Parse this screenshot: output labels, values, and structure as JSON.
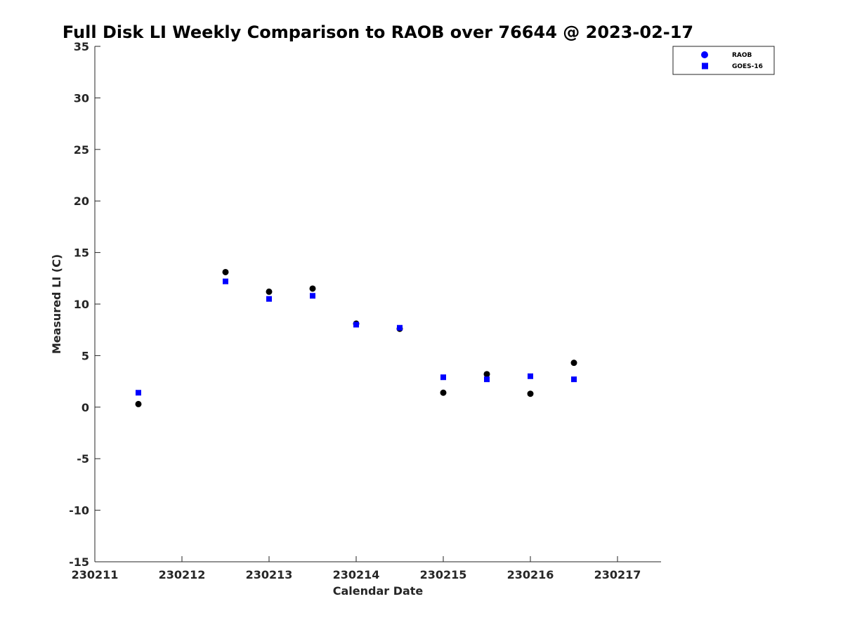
{
  "chart_data": {
    "type": "scatter",
    "title": "Full Disk LI Weekly Comparison to RAOB over 76644 @ 2023-02-17",
    "xlabel": "Calendar Date",
    "ylabel": "Measured LI (C)",
    "xlim": [
      "230211",
      "230217.5"
    ],
    "ylim": [
      -15,
      35
    ],
    "x_ticks": [
      "230211",
      "230212",
      "230213",
      "230214",
      "230215",
      "230216",
      "230217"
    ],
    "y_ticks": [
      "35",
      "30",
      "25",
      "20",
      "15",
      "10",
      "5",
      "0",
      "-5",
      "-10",
      "-15"
    ],
    "grid": false,
    "legend_position": "top-right",
    "series": [
      {
        "name": "RAOB",
        "marker": "circle",
        "color": "#000000",
        "legend_color": "#0000ff",
        "points": [
          {
            "x": "230211.5",
            "y": 0.3
          },
          {
            "x": "230212.5",
            "y": 13.1
          },
          {
            "x": "230213",
            "y": 11.2
          },
          {
            "x": "230213.5",
            "y": 11.5
          },
          {
            "x": "230214",
            "y": 8.1
          },
          {
            "x": "230214.5",
            "y": 7.6
          },
          {
            "x": "230215",
            "y": 1.4
          },
          {
            "x": "230215.5",
            "y": 3.2
          },
          {
            "x": "230216",
            "y": 1.3
          },
          {
            "x": "230216.5",
            "y": 4.3
          }
        ]
      },
      {
        "name": "GOES-16",
        "marker": "square",
        "color": "#0000ff",
        "legend_color": "#0000ff",
        "points": [
          {
            "x": "230211.5",
            "y": 1.4
          },
          {
            "x": "230212.5",
            "y": 12.2
          },
          {
            "x": "230213",
            "y": 10.5
          },
          {
            "x": "230213.5",
            "y": 10.8
          },
          {
            "x": "230214",
            "y": 8.0
          },
          {
            "x": "230214.5",
            "y": 7.7
          },
          {
            "x": "230215",
            "y": 2.9
          },
          {
            "x": "230215.5",
            "y": 2.7
          },
          {
            "x": "230216",
            "y": 3.0
          },
          {
            "x": "230216.5",
            "y": 2.7
          }
        ]
      }
    ]
  }
}
